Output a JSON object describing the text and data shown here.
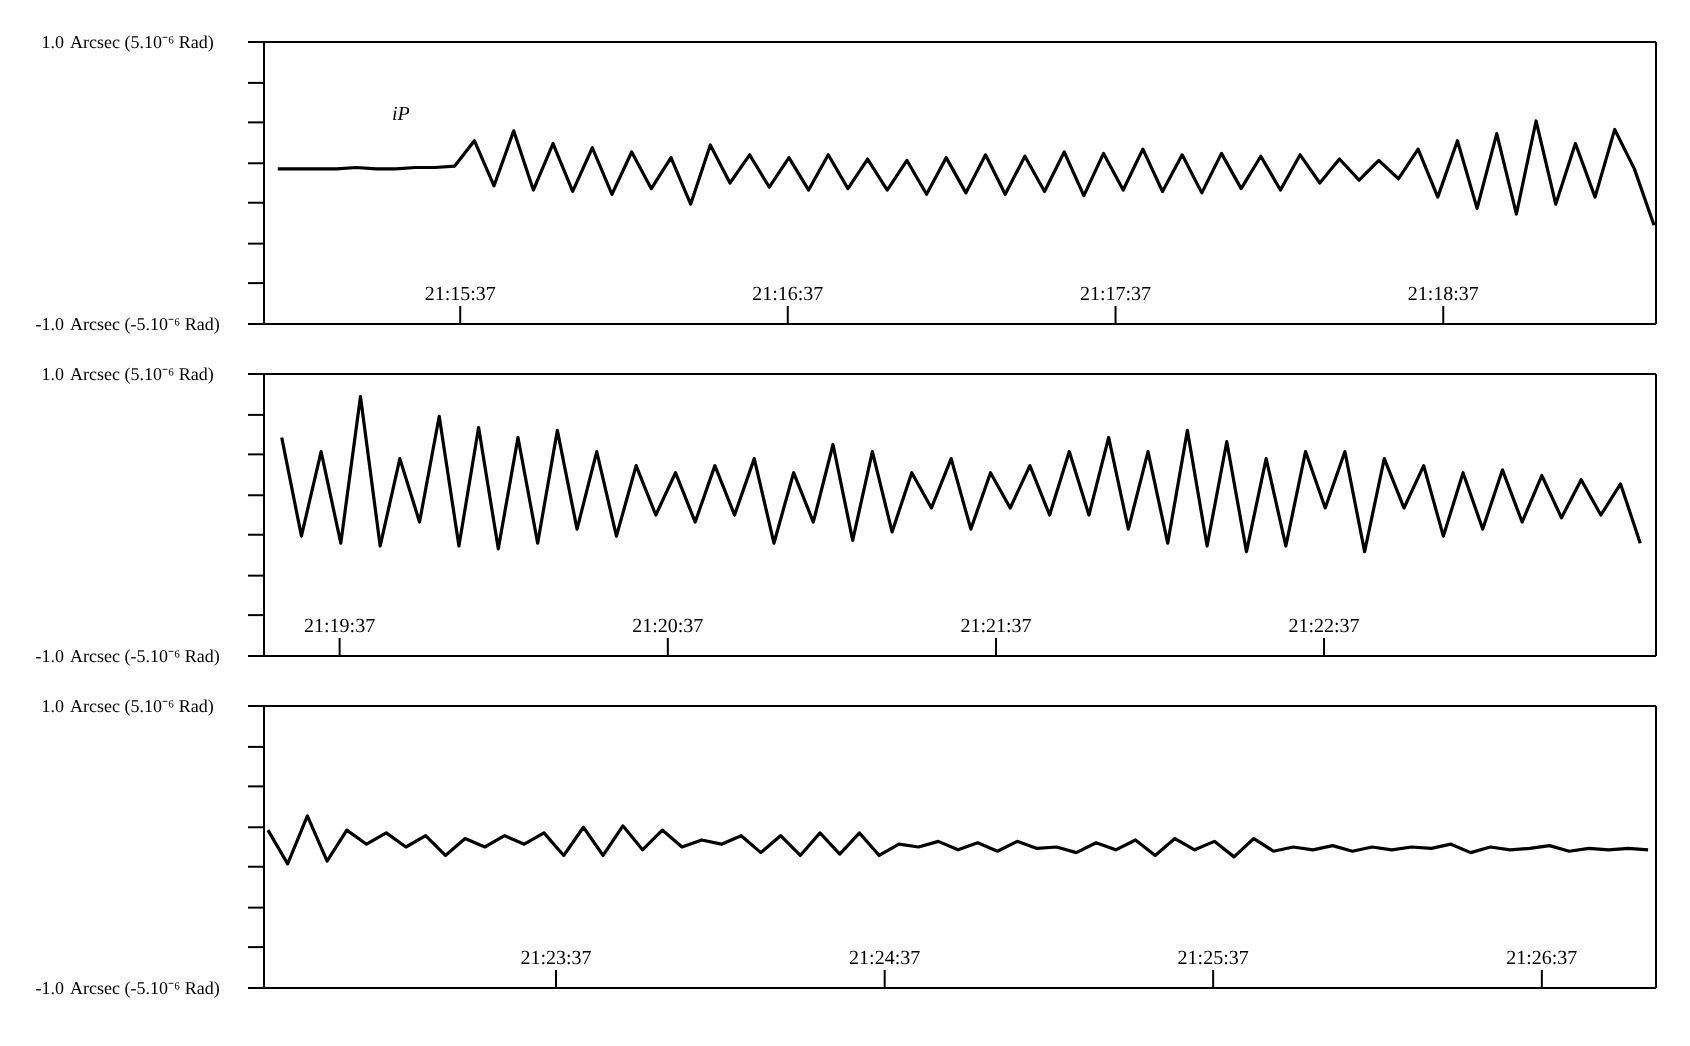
{
  "chart_data": [
    {
      "type": "line",
      "color": "#000000",
      "xlim": [
        21.2503,
        21.3211
      ],
      "ylim": [
        -1,
        1
      ],
      "xticks": [
        {
          "value": 21.26028,
          "label": "21:15:37"
        },
        {
          "value": 21.27694,
          "label": "21:16:37"
        },
        {
          "value": 21.29361,
          "label": "21:17:37"
        },
        {
          "value": 21.31028,
          "label": "21:18:37"
        }
      ],
      "yticks": [
        {
          "value": 1,
          "label": "1.0"
        },
        {
          "value": 0.71,
          "label": null
        },
        {
          "value": 0.43,
          "label": null
        },
        {
          "value": 0.14,
          "label": null
        },
        {
          "value": -0.14,
          "label": null
        },
        {
          "value": -0.43,
          "label": null
        },
        {
          "value": -0.71,
          "label": null
        },
        {
          "value": -1,
          "label": "-1.0"
        }
      ],
      "annotations": [
        "Arcsec (5.10⁻⁶ Rad)",
        "Arcsec (-5.10⁻⁶ Rad)",
        "iP"
      ],
      "x": [
        21.251,
        21.252,
        21.253,
        21.254,
        21.255,
        21.256,
        21.257,
        21.258,
        21.259,
        21.26,
        21.261,
        21.262,
        21.263,
        21.264,
        21.265,
        21.266,
        21.267,
        21.268,
        21.269,
        21.27,
        21.271,
        21.272,
        21.273,
        21.274,
        21.275,
        21.276,
        21.277,
        21.278,
        21.279,
        21.28,
        21.281,
        21.282,
        21.283,
        21.284,
        21.285,
        21.286,
        21.287,
        21.288,
        21.289,
        21.29,
        21.291,
        21.292,
        21.293,
        21.294,
        21.295,
        21.296,
        21.297,
        21.298,
        21.299,
        21.3,
        21.301,
        21.302,
        21.303,
        21.304,
        21.305,
        21.306,
        21.307,
        21.308,
        21.309,
        21.31,
        21.311,
        21.312,
        21.313,
        21.314,
        21.315,
        21.316,
        21.317,
        21.318,
        21.319,
        21.32,
        21.321
      ],
      "values": [
        0.1,
        0.1,
        0.1,
        0.1,
        0.11,
        0.1,
        0.1,
        0.11,
        0.11,
        0.12,
        0.3,
        -0.02,
        0.37,
        -0.05,
        0.28,
        -0.06,
        0.25,
        -0.08,
        0.22,
        -0.04,
        0.18,
        -0.15,
        0.27,
        0.0,
        0.2,
        -0.03,
        0.18,
        -0.05,
        0.2,
        -0.04,
        0.17,
        -0.05,
        0.16,
        -0.08,
        0.18,
        -0.07,
        0.2,
        -0.08,
        0.19,
        -0.06,
        0.22,
        -0.09,
        0.21,
        -0.05,
        0.24,
        -0.06,
        0.2,
        -0.07,
        0.21,
        -0.04,
        0.19,
        -0.05,
        0.2,
        0.0,
        0.17,
        0.02,
        0.16,
        0.03,
        0.24,
        -0.1,
        0.3,
        -0.18,
        0.35,
        -0.22,
        0.44,
        -0.15,
        0.28,
        -0.1,
        0.38,
        0.1,
        -0.3
      ]
    },
    {
      "type": "line",
      "color": "#000000",
      "xlim": [
        21.3231,
        21.3938
      ],
      "ylim": [
        -1,
        1
      ],
      "xticks": [
        {
          "value": 21.32694,
          "label": "21:19:37"
        },
        {
          "value": 21.34361,
          "label": "21:20:37"
        },
        {
          "value": 21.36028,
          "label": "21:21:37"
        },
        {
          "value": 21.37694,
          "label": "21:22:37"
        }
      ],
      "yticks": [
        {
          "value": 1,
          "label": "1.0"
        },
        {
          "value": 0.71,
          "label": null
        },
        {
          "value": 0.43,
          "label": null
        },
        {
          "value": 0.14,
          "label": null
        },
        {
          "value": -0.14,
          "label": null
        },
        {
          "value": -0.43,
          "label": null
        },
        {
          "value": -0.71,
          "label": null
        },
        {
          "value": -1,
          "label": "-1.0"
        }
      ],
      "annotations": [
        "Arcsec (5.10⁻⁶ Rad)",
        "Arcsec (-5.10⁻⁶ Rad)"
      ],
      "x": [
        21.324,
        21.325,
        21.326,
        21.327,
        21.328,
        21.329,
        21.33,
        21.331,
        21.332,
        21.333,
        21.334,
        21.335,
        21.336,
        21.337,
        21.338,
        21.339,
        21.34,
        21.341,
        21.342,
        21.343,
        21.344,
        21.345,
        21.346,
        21.347,
        21.348,
        21.349,
        21.35,
        21.351,
        21.352,
        21.353,
        21.354,
        21.355,
        21.356,
        21.357,
        21.358,
        21.359,
        21.36,
        21.361,
        21.362,
        21.363,
        21.364,
        21.365,
        21.366,
        21.367,
        21.368,
        21.369,
        21.37,
        21.371,
        21.372,
        21.373,
        21.374,
        21.375,
        21.376,
        21.377,
        21.378,
        21.379,
        21.38,
        21.381,
        21.382,
        21.383,
        21.384,
        21.385,
        21.386,
        21.387,
        21.388,
        21.389,
        21.39,
        21.391,
        21.392,
        21.393
      ],
      "values": [
        0.55,
        -0.15,
        0.45,
        -0.2,
        0.84,
        -0.22,
        0.4,
        -0.05,
        0.7,
        -0.22,
        0.62,
        -0.24,
        0.55,
        -0.2,
        0.6,
        -0.1,
        0.45,
        -0.15,
        0.35,
        0.0,
        0.3,
        -0.05,
        0.35,
        0.0,
        0.4,
        -0.2,
        0.3,
        -0.05,
        0.5,
        -0.18,
        0.45,
        -0.12,
        0.3,
        0.05,
        0.4,
        -0.1,
        0.3,
        0.05,
        0.35,
        0.0,
        0.45,
        0.0,
        0.55,
        -0.1,
        0.45,
        -0.2,
        0.6,
        -0.22,
        0.52,
        -0.26,
        0.4,
        -0.22,
        0.45,
        0.05,
        0.45,
        -0.26,
        0.4,
        0.05,
        0.35,
        -0.15,
        0.3,
        -0.1,
        0.32,
        -0.05,
        0.28,
        -0.02,
        0.25,
        0.0,
        0.22,
        -0.2
      ]
    },
    {
      "type": "line",
      "color": "#000000",
      "xlim": [
        21.3788,
        21.4494
      ],
      "ylim": [
        -1,
        1
      ],
      "xticks": [
        {
          "value": 21.39361,
          "label": "21:23:37"
        },
        {
          "value": 21.41028,
          "label": "21:24:37"
        },
        {
          "value": 21.42694,
          "label": "21:25:37"
        },
        {
          "value": 21.44361,
          "label": "21:26:37"
        }
      ],
      "yticks": [
        {
          "value": 1,
          "label": "1.0"
        },
        {
          "value": 0.71,
          "label": null
        },
        {
          "value": 0.43,
          "label": null
        },
        {
          "value": 0.14,
          "label": null
        },
        {
          "value": -0.14,
          "label": null
        },
        {
          "value": -0.43,
          "label": null
        },
        {
          "value": -0.71,
          "label": null
        },
        {
          "value": -1,
          "label": "-1.0"
        }
      ],
      "annotations": [
        "Arcsec (5.10⁻⁶ Rad)",
        "Arcsec (-5.10⁻⁶ Rad)"
      ],
      "x": [
        21.379,
        21.38,
        21.381,
        21.382,
        21.383,
        21.384,
        21.385,
        21.386,
        21.387,
        21.388,
        21.389,
        21.39,
        21.391,
        21.392,
        21.393,
        21.394,
        21.395,
        21.396,
        21.397,
        21.398,
        21.399,
        21.4,
        21.401,
        21.402,
        21.403,
        21.404,
        21.405,
        21.406,
        21.407,
        21.408,
        21.409,
        21.41,
        21.411,
        21.412,
        21.413,
        21.414,
        21.415,
        21.416,
        21.417,
        21.418,
        21.419,
        21.42,
        21.421,
        21.422,
        21.423,
        21.424,
        21.425,
        21.426,
        21.427,
        21.428,
        21.429,
        21.43,
        21.431,
        21.432,
        21.433,
        21.434,
        21.435,
        21.436,
        21.437,
        21.438,
        21.439,
        21.44,
        21.441,
        21.442,
        21.443,
        21.444,
        21.445,
        21.446,
        21.447,
        21.448,
        21.449
      ],
      "values": [
        0.12,
        -0.12,
        0.22,
        -0.1,
        0.12,
        0.02,
        0.1,
        0.0,
        0.08,
        -0.06,
        0.06,
        0.0,
        0.08,
        0.02,
        0.1,
        -0.06,
        0.14,
        -0.06,
        0.15,
        -0.02,
        0.12,
        0.0,
        0.05,
        0.02,
        0.08,
        -0.04,
        0.08,
        -0.06,
        0.1,
        -0.05,
        0.1,
        -0.06,
        0.02,
        0.0,
        0.04,
        -0.02,
        0.03,
        -0.03,
        0.04,
        -0.01,
        0.0,
        -0.04,
        0.03,
        -0.02,
        0.05,
        -0.06,
        0.06,
        -0.02,
        0.04,
        -0.07,
        0.06,
        -0.03,
        0.0,
        -0.02,
        0.01,
        -0.03,
        0.0,
        -0.02,
        0.0,
        -0.01,
        0.02,
        -0.04,
        0.0,
        -0.02,
        -0.01,
        0.01,
        -0.03,
        -0.01,
        -0.02,
        -0.01,
        -0.02
      ]
    }
  ]
}
